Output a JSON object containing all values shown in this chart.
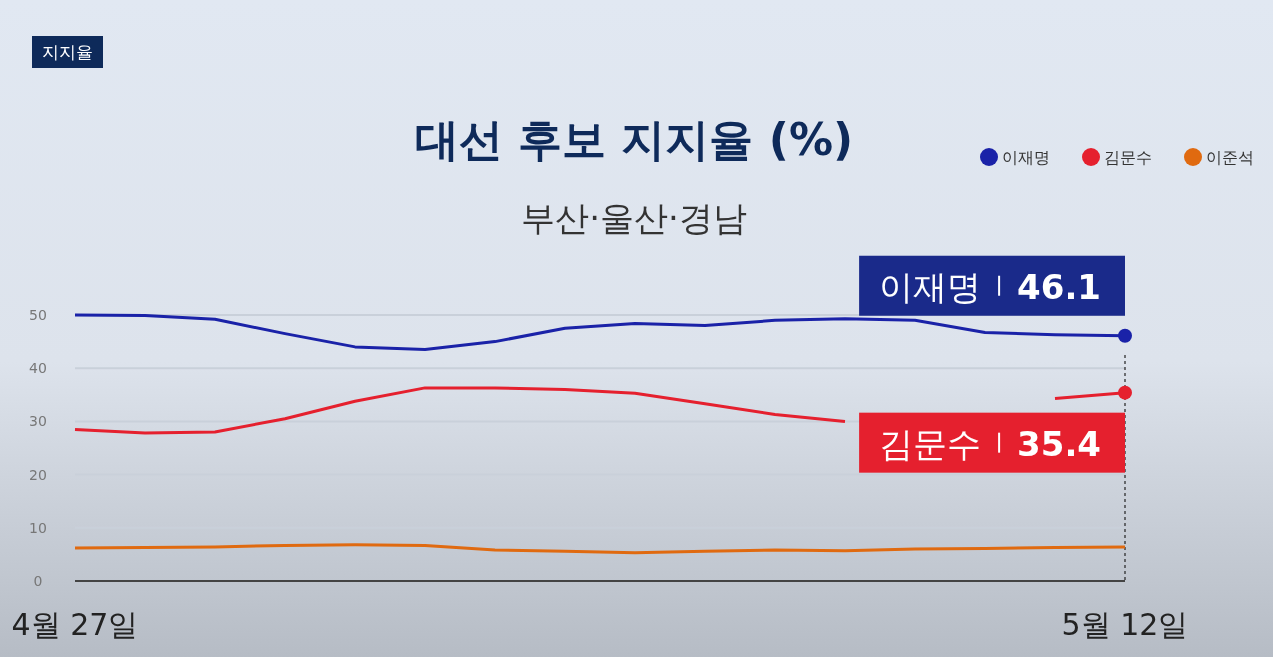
{
  "chart_data": {
    "type": "line",
    "title": "대선 후보 지지율 (%)",
    "subtitle": "부산·울산·경남",
    "annotations": [
      "지지율"
    ],
    "x": [
      "--04-27",
      "--04-28",
      "--04-29",
      "--04-30",
      "--05-01",
      "--05-02",
      "--05-03",
      "--05-04",
      "--05-05",
      "--05-06",
      "--05-07",
      "--05-08",
      "--05-09",
      "--05-10",
      "--05-11",
      "--05-12"
    ],
    "xlim": [
      "--04-27",
      "--05-12"
    ],
    "xticks": [
      {
        "value": "--04-27",
        "label": "4월 27일"
      },
      {
        "value": "--05-12",
        "label": "5월 12일"
      }
    ],
    "series": [
      {
        "name": "이재명",
        "color": "#1a22a8",
        "values": [
          50.0,
          49.9,
          49.2,
          46.5,
          44.0,
          43.5,
          45.0,
          47.5,
          48.4,
          48.0,
          49.0,
          49.3,
          49.0,
          46.7,
          46.3,
          46.1
        ],
        "value_labels": [
          null,
          null,
          null,
          null,
          null,
          null,
          null,
          null,
          null,
          null,
          null,
          null,
          null,
          null,
          null,
          "46.1"
        ]
      },
      {
        "name": "김문수",
        "color": "#e5202e",
        "values": [
          28.5,
          27.8,
          28.0,
          30.5,
          33.8,
          36.3,
          36.3,
          36.0,
          35.3,
          33.3,
          31.3,
          30.0,
          null,
          null,
          34.3,
          35.4
        ],
        "value_labels": [
          null,
          null,
          null,
          null,
          null,
          null,
          null,
          null,
          null,
          null,
          null,
          null,
          null,
          null,
          null,
          "35.4"
        ]
      },
      {
        "name": "이준석",
        "color": "#e06a10",
        "values": [
          6.2,
          6.3,
          6.4,
          6.7,
          6.8,
          6.7,
          5.8,
          5.6,
          5.3,
          5.6,
          5.8,
          5.7,
          6.0,
          6.1,
          6.3,
          6.4
        ]
      }
    ],
    "ylim": [
      0,
      50
    ],
    "yticks": [
      0,
      10,
      20,
      30,
      40,
      50
    ],
    "grid": "y",
    "legend": "top right",
    "ref_lines": [
      {
        "axis": "x",
        "value": "--05-12",
        "line_style": "dotted"
      }
    ]
  }
}
